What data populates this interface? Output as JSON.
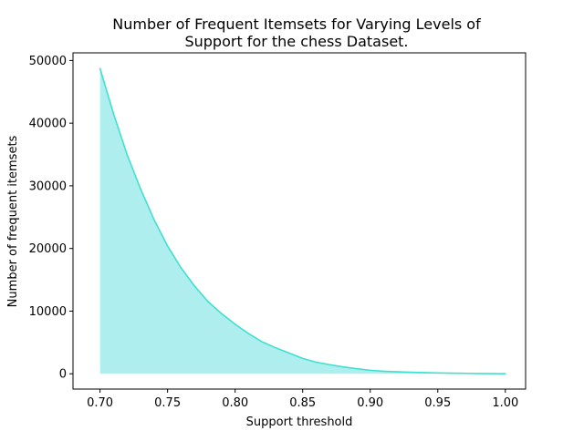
{
  "chart_data": {
    "type": "area",
    "title_lines": [
      "Number of Frequent Itemsets for Varying Levels of",
      "Support for the chess Dataset."
    ],
    "xlabel": "Support threshold",
    "ylabel": "Number of frequent itemsets",
    "xlim": [
      0.68,
      1.015
    ],
    "ylim": [
      -2440,
      51220
    ],
    "xticks": [
      0.7,
      0.75,
      0.8,
      0.85,
      0.9,
      0.95,
      1.0
    ],
    "xtick_labels": [
      "0.70",
      "0.75",
      "0.80",
      "0.85",
      "0.90",
      "0.95",
      "1.00"
    ],
    "yticks": [
      0,
      10000,
      20000,
      30000,
      40000,
      50000
    ],
    "ytick_labels": [
      "0",
      "10000",
      "20000",
      "30000",
      "40000",
      "50000"
    ],
    "grid": false,
    "line_color": "#40e0d0",
    "fill_color": "#afeeee",
    "x": [
      0.7,
      0.71,
      0.72,
      0.73,
      0.74,
      0.75,
      0.76,
      0.77,
      0.78,
      0.79,
      0.8,
      0.81,
      0.82,
      0.83,
      0.84,
      0.85,
      0.86,
      0.87,
      0.88,
      0.89,
      0.9,
      0.91,
      0.92,
      0.93,
      0.94,
      0.95,
      0.96,
      0.97,
      0.98,
      0.99,
      1.0
    ],
    "y": [
      48731,
      41500,
      35000,
      29500,
      24600,
      20400,
      16900,
      14000,
      11500,
      9600,
      7900,
      6400,
      5100,
      4150,
      3300,
      2450,
      1850,
      1450,
      1100,
      800,
      560,
      400,
      320,
      250,
      190,
      140,
      100,
      70,
      45,
      25,
      10
    ]
  }
}
